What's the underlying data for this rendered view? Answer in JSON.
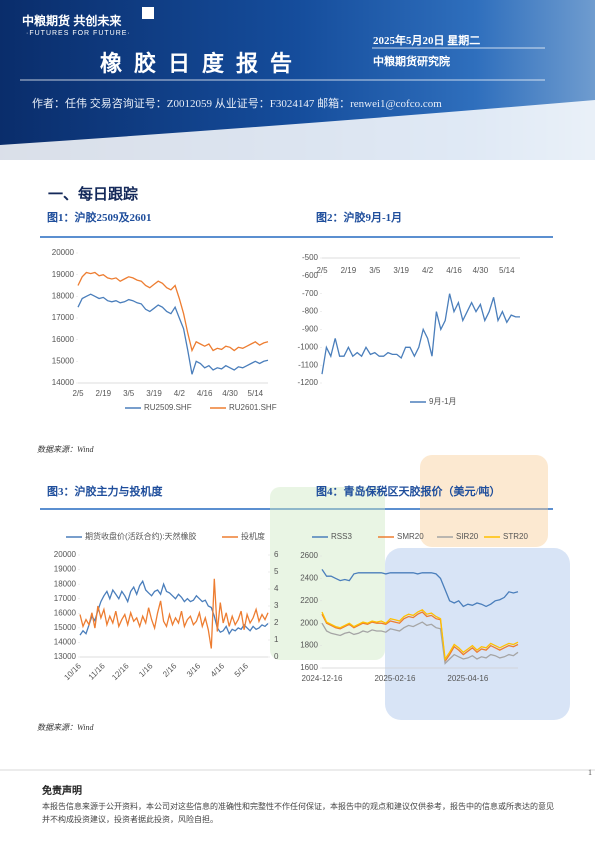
{
  "header": {
    "logo": "中粮期货 共创未来",
    "slogan": "·FUTURES FOR FUTURE·",
    "title": "橡胶日度报告",
    "date": "2025年5月20日 星期二",
    "org": "中粮期货研究院",
    "author": "作者：任伟   交易咨询证号：Z0012059   从业证号：F3024147   邮箱：renwei1@cofco.com"
  },
  "section_title": "一、每日跟踪",
  "sources": [
    "数据来源：Wind",
    "数据来源：Wind"
  ],
  "disclaimer": {
    "title": "免责声明",
    "text": "本报告信息来源于公开资料，本公司对这些信息的准确性和完整性不作任何保证，本报告中的观点和建议仅供参考，报告中的信息或所表达的意见并不构成投资建议，投资者据此投资，风险自担。"
  },
  "page_number": "1",
  "chart_data": [
    {
      "type": "line",
      "title": "图1：沪胶2509及2601",
      "legend": "bottom",
      "grid": false,
      "xaxis": "bottom",
      "categories": [
        "2/5",
        null,
        null,
        null,
        null,
        null,
        "2/19",
        null,
        null,
        null,
        null,
        null,
        "3/5",
        null,
        null,
        null,
        null,
        null,
        "3/19",
        null,
        null,
        null,
        null,
        null,
        "4/2",
        null,
        null,
        null,
        null,
        null,
        "4/16",
        null,
        null,
        null,
        null,
        null,
        "4/30",
        null,
        null,
        null,
        null,
        null,
        "5/14",
        null,
        null,
        null
      ],
      "ylim": [
        14000,
        20000
      ],
      "yticks": [
        14000,
        15000,
        16000,
        17000,
        18000,
        19000,
        20000
      ],
      "series": [
        {
          "name": "RU2509.SHF",
          "color": "#4a7ebb",
          "values": [
            17500,
            17900,
            18000,
            18100,
            18000,
            17900,
            17950,
            17800,
            17750,
            17800,
            17700,
            17750,
            17850,
            17800,
            17700,
            17650,
            17400,
            17300,
            17450,
            17600,
            17500,
            17300,
            17200,
            17500,
            17000,
            16500,
            15500,
            14400,
            15000,
            14900,
            14700,
            14800,
            14600,
            14700,
            14650,
            14800,
            14700,
            14600,
            14750,
            14700,
            14800,
            14900,
            15000,
            14900,
            15000,
            15050
          ]
        },
        {
          "name": "RU2601.SHF",
          "color": "#ed7d31",
          "values": [
            18500,
            18900,
            19100,
            19050,
            19100,
            18950,
            19000,
            18850,
            18800,
            18850,
            18700,
            18800,
            18900,
            18850,
            18750,
            18700,
            18500,
            18400,
            18550,
            18700,
            18600,
            18400,
            18300,
            18500,
            17900,
            17200,
            16300,
            15500,
            15900,
            15800,
            15700,
            15800,
            15500,
            15600,
            15550,
            15700,
            15650,
            15500,
            15650,
            15600,
            15700,
            15800,
            15900,
            15750,
            15850,
            15900
          ]
        }
      ]
    },
    {
      "type": "line",
      "title": "图2：沪胶9月-1月",
      "legend": "bottom",
      "grid": false,
      "xaxis": "top",
      "categories": [
        "2/5",
        null,
        null,
        null,
        null,
        null,
        "2/19",
        null,
        null,
        null,
        null,
        null,
        "3/5",
        null,
        null,
        null,
        null,
        null,
        "3/19",
        null,
        null,
        null,
        null,
        null,
        "4/2",
        null,
        null,
        null,
        null,
        null,
        "4/16",
        null,
        null,
        null,
        null,
        null,
        "4/30",
        null,
        null,
        null,
        null,
        null,
        "5/14",
        null,
        null,
        null
      ],
      "ylim": [
        -1200,
        -500
      ],
      "yticks": [
        -1200,
        -1100,
        -1000,
        -900,
        -800,
        -700,
        -600,
        -500
      ],
      "series": [
        {
          "name": "9月-1月",
          "color": "#4a7ebb",
          "values": [
            -1150,
            -1000,
            -1050,
            -950,
            -1050,
            -1050,
            -1000,
            -1050,
            -1030,
            -1050,
            -1000,
            -1040,
            -1030,
            -1050,
            -1050,
            -1030,
            -1040,
            -1040,
            -1060,
            -1000,
            -1000,
            -1050,
            -1000,
            -900,
            -950,
            -1050,
            -800,
            -900,
            -850,
            -700,
            -800,
            -750,
            -850,
            -800,
            -750,
            -800,
            -760,
            -850,
            -800,
            -720,
            -850,
            -800,
            -860,
            -820,
            -830,
            -830
          ]
        }
      ]
    },
    {
      "type": "line",
      "title": "图3：沪胶主力与投机度",
      "legend": "top",
      "grid": false,
      "xaxis": "bottom",
      "xtick_rotation": -45,
      "categories": [
        "10/16",
        null,
        null,
        null,
        null,
        null,
        null,
        null,
        "11/16",
        null,
        null,
        null,
        null,
        null,
        null,
        null,
        "12/16",
        null,
        null,
        null,
        null,
        null,
        null,
        null,
        "1/16",
        null,
        null,
        null,
        null,
        null,
        null,
        null,
        "2/16",
        null,
        null,
        null,
        null,
        null,
        null,
        null,
        "3/16",
        null,
        null,
        null,
        null,
        null,
        null,
        null,
        "4/16",
        null,
        null,
        null,
        null,
        null,
        null,
        null,
        "5/16",
        null,
        null,
        null,
        null,
        null,
        null,
        null
      ],
      "ylim": [
        13000,
        20000
      ],
      "yticks": [
        13000,
        14000,
        15000,
        16000,
        17000,
        18000,
        19000,
        20000
      ],
      "y2lim": [
        0,
        6
      ],
      "y2ticks": [
        0,
        1,
        2,
        3,
        4,
        5,
        6
      ],
      "series": [
        {
          "name": "期货收盘价(活跃合约):天然橡胶",
          "color": "#4a7ebb",
          "values": [
            14500,
            14800,
            14600,
            15200,
            15800,
            15500,
            16200,
            16800,
            17200,
            17500,
            17000,
            17600,
            17300,
            17000,
            17500,
            17200,
            16800,
            17500,
            17800,
            17300,
            17900,
            18200,
            17600,
            17400,
            17200,
            17500,
            17600,
            17300,
            18000,
            17500,
            17400,
            17200,
            17000,
            17300,
            17100,
            16800,
            17000,
            16800,
            16900,
            17200,
            17000,
            16800,
            16900,
            16500,
            16400,
            15800,
            15000,
            14700,
            14800,
            15100,
            14600,
            14900,
            14800,
            15000,
            14900,
            15200,
            15000,
            14800,
            15100,
            14900,
            15000,
            15200,
            15100,
            15300
          ]
        },
        {
          "name": "投机度",
          "color": "#ed7d31",
          "axis": "y2",
          "values": [
            2.5,
            1.8,
            2.2,
            1.9,
            2.6,
            1.7,
            3.0,
            2.3,
            2.8,
            1.9,
            2.4,
            2.0,
            2.7,
            1.8,
            2.2,
            2.5,
            1.9,
            2.6,
            2.1,
            2.3,
            1.8,
            2.4,
            2.0,
            2.9,
            2.2,
            1.7,
            2.6,
            3.3,
            2.1,
            1.8,
            2.5,
            1.9,
            2.3,
            2.0,
            2.7,
            1.8,
            2.2,
            2.4,
            1.9,
            2.1,
            2.6,
            1.8,
            2.3,
            1.6,
            0.5,
            4.6,
            1.5,
            3.2,
            2.0,
            2.6,
            1.8,
            2.4,
            1.9,
            2.2,
            2.7,
            1.6,
            2.5,
            2.0,
            2.3,
            2.8,
            2.1,
            2.5,
            2.2,
            2.6
          ]
        }
      ]
    },
    {
      "type": "line",
      "title": "图4：青岛保税区天胶报价（美元/吨）",
      "legend": "top",
      "grid": false,
      "xaxis": "bottom",
      "categories": [
        "2024-12-16",
        null,
        null,
        null,
        null,
        null,
        null,
        null,
        null,
        null,
        null,
        null,
        null,
        null,
        null,
        null,
        "2025-02-16",
        null,
        null,
        null,
        null,
        null,
        null,
        null,
        null,
        null,
        null,
        null,
        null,
        null,
        null,
        null,
        "2025-04-16",
        null,
        null,
        null,
        null,
        null,
        null,
        null,
        null,
        null,
        null,
        null
      ],
      "ylim": [
        1600,
        2600
      ],
      "yticks": [
        1600,
        1800,
        2000,
        2200,
        2400,
        2600
      ],
      "series": [
        {
          "name": "RSS3",
          "color": "#4a7ebb",
          "values": [
            2480,
            2420,
            2420,
            2400,
            2380,
            2390,
            2380,
            2440,
            2450,
            2450,
            2450,
            2450,
            2450,
            2450,
            2440,
            2450,
            2450,
            2450,
            2450,
            2450,
            2450,
            2440,
            2450,
            2450,
            2450,
            2440,
            2400,
            2300,
            2200,
            2180,
            2200,
            2150,
            2170,
            2160,
            2180,
            2170,
            2150,
            2170,
            2200,
            2210,
            2230,
            2280,
            2270,
            2280
          ]
        },
        {
          "name": "SMR20",
          "color": "#ed7d31",
          "values": [
            2080,
            2000,
            1980,
            1960,
            1950,
            1970,
            1990,
            1960,
            1980,
            2000,
            1990,
            2010,
            2000,
            2000,
            1990,
            2020,
            2010,
            2000,
            2040,
            2060,
            2050,
            2080,
            2100,
            2060,
            2070,
            2040,
            2030,
            1660,
            1720,
            1790,
            1760,
            1720,
            1750,
            1780,
            1740,
            1770,
            1760,
            1800,
            1780,
            1760,
            1780,
            1800,
            1790,
            1810
          ]
        },
        {
          "name": "SIR20",
          "color": "#a5a5a5",
          "values": [
            2000,
            1930,
            1910,
            1900,
            1890,
            1910,
            1920,
            1900,
            1910,
            1930,
            1920,
            1940,
            1930,
            1930,
            1920,
            1950,
            1940,
            1930,
            1960,
            1980,
            1970,
            1990,
            2010,
            1980,
            1990,
            1960,
            1950,
            1640,
            1680,
            1720,
            1700,
            1680,
            1690,
            1710,
            1680,
            1700,
            1690,
            1720,
            1710,
            1690,
            1700,
            1720,
            1710,
            1740
          ]
        },
        {
          "name": "STR20",
          "color": "#ffc000",
          "values": [
            2100,
            2010,
            1990,
            1970,
            1960,
            1980,
            2000,
            1970,
            1990,
            2010,
            2000,
            2020,
            2010,
            2020,
            2000,
            2040,
            2030,
            2020,
            2060,
            2080,
            2070,
            2100,
            2120,
            2080,
            2090,
            2060,
            2040,
            1680,
            1740,
            1810,
            1780,
            1740,
            1770,
            1800,
            1760,
            1790,
            1780,
            1820,
            1800,
            1780,
            1800,
            1820,
            1810,
            1830
          ]
        }
      ]
    }
  ]
}
